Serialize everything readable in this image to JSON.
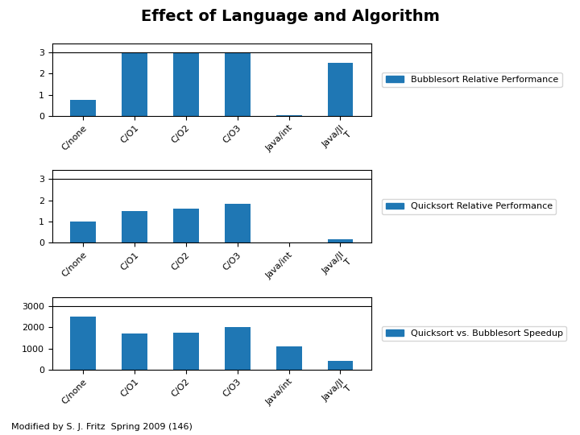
{
  "title": "Effect of Language and Algorithm",
  "annotations": [
    "Modified by S. J. Fritz  Spring 2009 (146)"
  ],
  "chart_data": [
    {
      "type": "bar",
      "categories": [
        "C/none",
        "C/O1",
        "C/O2",
        "C/O3",
        "Java/int",
        "Java/JI\nT"
      ],
      "series": [
        {
          "name": "Bubblesort Relative Performance",
          "values": [
            0.75,
            3.0,
            3.0,
            3.0,
            0.04,
            2.5
          ]
        }
      ],
      "ylim": [
        0,
        3.4
      ],
      "yticks": [
        0,
        1,
        2,
        3
      ],
      "reference_line": 3.0,
      "legend": "right"
    },
    {
      "type": "bar",
      "categories": [
        "C/none",
        "C/O1",
        "C/O2",
        "C/O3",
        "Java/int",
        "Java/JI\nT"
      ],
      "series": [
        {
          "name": "Quicksort Relative Performance",
          "values": [
            1.0,
            1.5,
            1.6,
            1.85,
            0.0,
            0.18
          ]
        }
      ],
      "ylim": [
        0,
        3.4
      ],
      "yticks": [
        0,
        1,
        2,
        3
      ],
      "reference_line": 3.0,
      "legend": "right"
    },
    {
      "type": "bar",
      "categories": [
        "C/none",
        "C/O1",
        "C/O2",
        "C/O3",
        "Java/int",
        "Java/JI\nT"
      ],
      "series": [
        {
          "name": "Quicksort vs. Bubblesort Speedup",
          "values": [
            2500,
            1700,
            1750,
            2000,
            1100,
            400
          ]
        }
      ],
      "ylim": [
        0,
        3400
      ],
      "yticks": [
        0,
        1000,
        2000,
        3000
      ],
      "reference_line": 3000,
      "legend": "right"
    }
  ]
}
